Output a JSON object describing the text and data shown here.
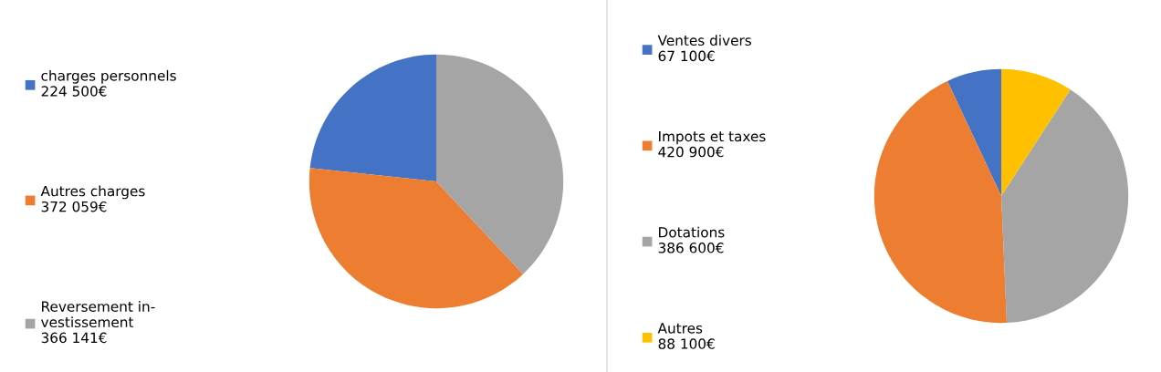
{
  "chart_data": [
    {
      "type": "pie",
      "categories": [
        "charges personnels",
        "Autres charges",
        "Reversement in-\nvestissement"
      ],
      "values": [
        224500,
        372059,
        366141
      ],
      "colors": [
        "#4472c4",
        "#ed7d31",
        "#a5a5a5"
      ],
      "value_labels": [
        "224 500€",
        "372 059€",
        "366 141€"
      ],
      "legend": "left"
    },
    {
      "type": "pie",
      "categories": [
        "Ventes divers",
        "Impots et taxes",
        "Dotations",
        "Autres"
      ],
      "values": [
        67100,
        420900,
        386600,
        88100
      ],
      "colors": [
        "#4472c4",
        "#ed7d31",
        "#a5a5a5",
        "#ffc000"
      ],
      "value_labels": [
        "67 100€",
        "420 900€",
        "386 600€",
        "88 100€"
      ],
      "legend": "left"
    }
  ]
}
